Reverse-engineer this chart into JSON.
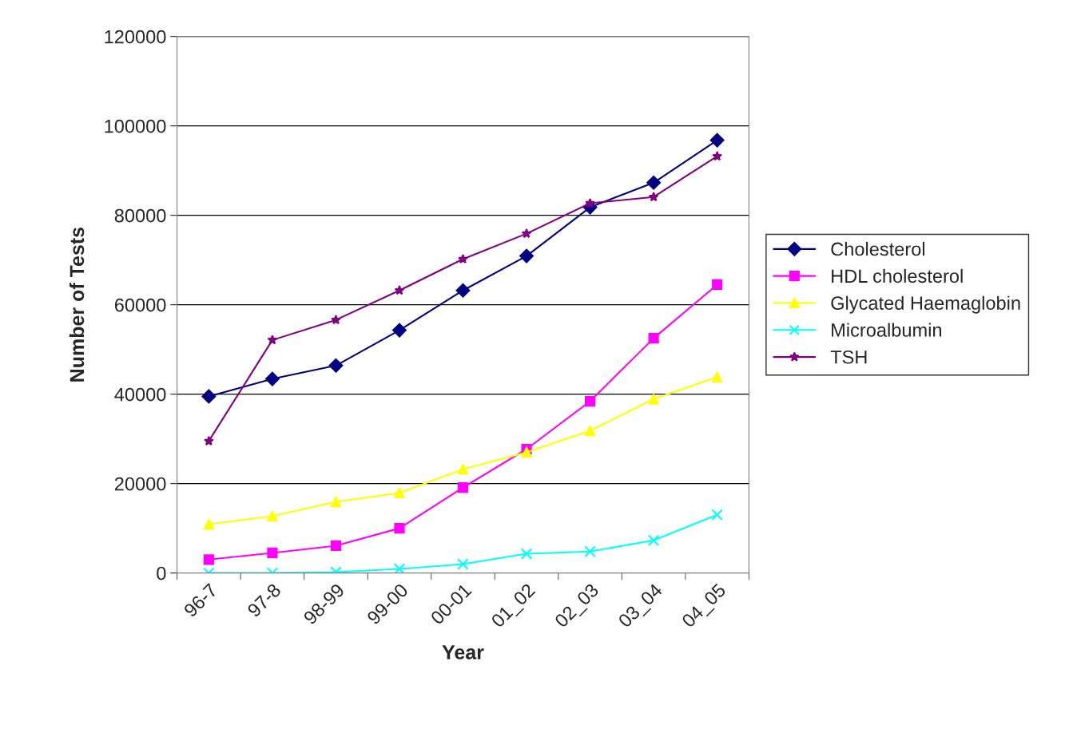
{
  "chart_data": {
    "type": "line",
    "xlabel": "Year",
    "ylabel": "Number of Tests",
    "categories": [
      "96-7",
      "97-8",
      "98-99",
      "99-00",
      "00-01",
      "01_02",
      "02_03",
      "03_04",
      "04_05"
    ],
    "series": [
      {
        "name": "Cholesterol",
        "color": "#000080",
        "marker": "diamond",
        "values": [
          39500,
          43400,
          46400,
          54300,
          63200,
          70900,
          81800,
          87300,
          96800
        ]
      },
      {
        "name": "HDL cholesterol",
        "color": "#ff00ff",
        "marker": "square",
        "values": [
          3000,
          4500,
          6100,
          10000,
          19100,
          27700,
          38400,
          52500,
          64500
        ]
      },
      {
        "name": "Glycated Haemaglobin",
        "color": "#ffff00",
        "marker": "triangle",
        "values": [
          10900,
          12700,
          15900,
          17900,
          23200,
          27000,
          31800,
          38900,
          43800
        ]
      },
      {
        "name": "Microalbumin",
        "color": "#00ffff",
        "marker": "cross",
        "values": [
          0,
          0,
          200,
          900,
          2000,
          4300,
          4800,
          7300,
          13000
        ]
      },
      {
        "name": "TSH",
        "color": "#800080",
        "marker": "star",
        "values": [
          29500,
          52100,
          56600,
          63200,
          70200,
          75900,
          82700,
          84100,
          93200
        ]
      }
    ],
    "ylim": [
      0,
      120000
    ],
    "yticks": [
      0,
      20000,
      40000,
      60000,
      80000,
      100000,
      120000
    ],
    "grid": "y",
    "legend": "right",
    "line_style": "solid"
  }
}
